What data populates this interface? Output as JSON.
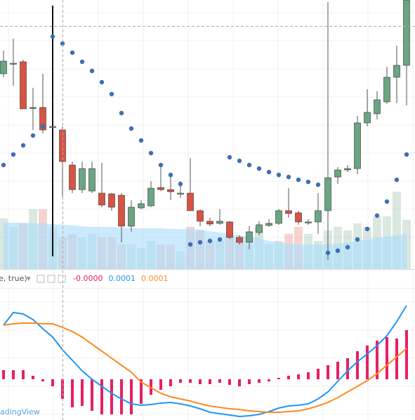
{
  "chart_data": [
    {
      "type": "candlestick",
      "ylim": [
        17,
        400
      ],
      "up_color": "#6ba583",
      "down_color": "#d75442",
      "open": [
        295,
        310,
        312,
        246,
        247,
        220,
        215,
        165,
        130,
        128,
        125,
        124,
        122,
        78,
        104,
        107,
        133,
        130,
        125,
        125,
        100,
        85,
        82,
        84,
        62,
        55,
        69,
        79,
        82,
        100,
        97,
        84,
        84,
        100,
        148,
        158,
        160,
        225,
        238,
        255,
        290,
        307
      ],
      "high": [
        328,
        345,
        315,
        275,
        295,
        392,
        220,
        170,
        170,
        170,
        168,
        125,
        125,
        115,
        115,
        142,
        168,
        152,
        142,
        175,
        102,
        90,
        102,
        85,
        65,
        78,
        85,
        88,
        102,
        132,
        100,
        88,
        125,
        397,
        162,
        165,
        235,
        273,
        270,
        305,
        335,
        400
      ],
      "low": [
        290,
        278,
        245,
        215,
        210,
        35,
        120,
        125,
        125,
        125,
        105,
        100,
        55,
        70,
        102,
        105,
        128,
        115,
        118,
        100,
        78,
        78,
        80,
        60,
        52,
        45,
        65,
        77,
        80,
        90,
        80,
        80,
        67,
        30,
        138,
        155,
        152,
        220,
        230,
        252,
        253,
        250
      ],
      "close": [
        313,
        310,
        245,
        247,
        215,
        220,
        170,
        130,
        160,
        160,
        108,
        105,
        78,
        105,
        110,
        132,
        130,
        127,
        125,
        100,
        85,
        81,
        85,
        62,
        55,
        70,
        80,
        82,
        100,
        96,
        84,
        84,
        100,
        147,
        158,
        160,
        225,
        240,
        258,
        290,
        307,
        400
      ],
      "overlays": [
        {
          "type": "dots",
          "color": "#3c6fb4",
          "values": [
            165,
            180,
            193,
            207,
            220,
            348,
            338,
            325,
            312,
            299,
            283,
            266,
            239,
            217,
            200,
            182,
            165,
            151,
            138,
            52,
            55,
            57,
            59,
            176,
            171,
            165,
            160,
            155,
            151,
            148,
            144,
            141,
            137,
            40,
            43,
            48,
            59,
            74,
            93,
            113,
            144,
            180
          ]
        }
      ],
      "volume": {
        "ylim": [
          0,
          383
        ],
        "values": [
          72,
          60,
          65,
          85,
          85,
          60,
          45,
          50,
          45,
          50,
          45,
          45,
          35,
          35,
          30,
          40,
          35,
          35,
          25,
          60,
          55,
          40,
          40,
          45,
          40,
          35,
          60,
          35,
          40,
          50,
          60,
          50,
          40,
          55,
          60,
          55,
          65,
          60,
          75,
          75,
          110,
          70
        ],
        "ma": [
          66,
          66,
          66,
          65,
          65,
          64,
          63,
          62,
          61,
          60,
          60,
          60,
          59,
          58,
          58,
          58,
          58,
          57,
          57,
          57,
          56,
          54,
          52,
          50,
          48,
          46,
          44,
          40,
          38,
          36,
          35,
          35,
          35,
          35,
          36,
          38,
          40,
          42,
          44,
          46,
          48,
          50
        ],
        "ma_color": "#a9dcfb"
      }
    },
    {
      "type": "macd",
      "legend_label": "e, true)",
      "readouts": [
        {
          "text": "-0.0000",
          "color": "#e91e63"
        },
        {
          "text": "0.0001",
          "color": "#2196f3"
        },
        {
          "text": "0.0001",
          "color": "#ff8a1f"
        }
      ],
      "ylim": [
        -58,
        135
      ],
      "histogram": {
        "color": "#e91e63",
        "values": [
          13,
          13,
          13,
          5,
          -3,
          -10,
          -28,
          -40,
          -38,
          -45,
          -50,
          -50,
          -50,
          -50,
          -35,
          -22,
          -15,
          -10,
          -5,
          -5,
          -7,
          -7,
          -5,
          -8,
          -10,
          -7,
          -5,
          -3,
          2,
          5,
          7,
          10,
          15,
          20,
          25,
          30,
          40,
          48,
          55,
          60,
          58,
          70
        ]
      },
      "series": [
        {
          "color": "#2196f3",
          "values": [
            77,
            95,
            93,
            85,
            72,
            60,
            42,
            27,
            12,
            0,
            -10,
            -20,
            -28,
            -35,
            -37,
            -36,
            -34,
            -33,
            -35,
            -38,
            -42,
            -47,
            -49,
            -51,
            -53,
            -52,
            -50,
            -46,
            -41,
            -38,
            -37,
            -35,
            -28,
            -18,
            -3,
            12,
            25,
            36,
            48,
            62,
            82,
            105
          ]
        },
        {
          "color": "#ff8a1f",
          "values": [
            77,
            79,
            80,
            80,
            79,
            79,
            74,
            68,
            60,
            50,
            40,
            30,
            20,
            10,
            -4,
            -12,
            -20,
            -25,
            -28,
            -31,
            -35,
            -38,
            -40,
            -42,
            -43,
            -45,
            -46,
            -47,
            -47,
            -46,
            -45,
            -42,
            -38,
            -33,
            -26,
            -18,
            -10,
            -2,
            8,
            20,
            32,
            44
          ]
        }
      ],
      "watermark": "adingView"
    }
  ]
}
